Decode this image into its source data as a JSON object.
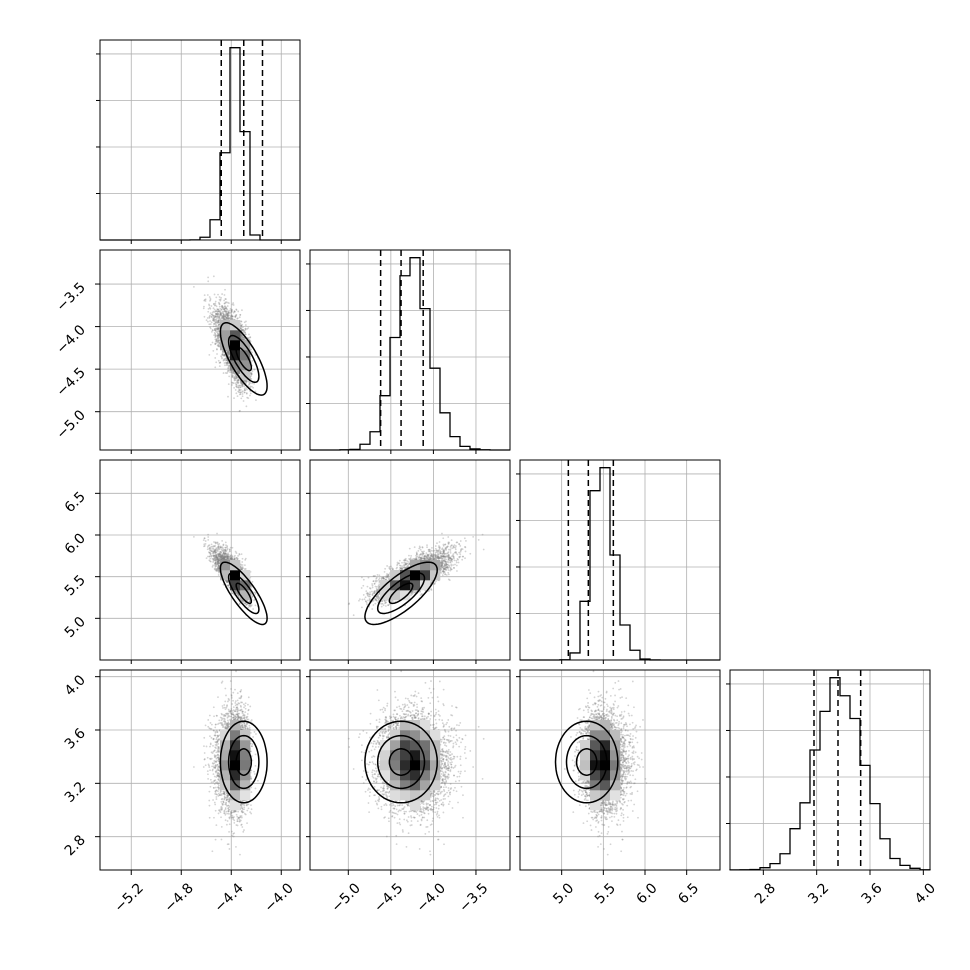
{
  "chart_data": {
    "type": "corner",
    "n_params": 4,
    "grid": true,
    "params": [
      {
        "range": [
          -5.45,
          -3.85
        ],
        "ticks": [
          -5.2,
          -4.8,
          -4.4,
          -4.0
        ],
        "tick_labels": [
          "−5.2",
          "−4.8",
          "−4.4",
          "−4.0"
        ],
        "mean": -4.3,
        "sd": 0.11,
        "skew": -2.5,
        "quantiles": [
          -4.48,
          -4.3,
          -4.15
        ]
      },
      {
        "range": [
          -5.45,
          -3.1
        ],
        "ticks": [
          -5.0,
          -4.5,
          -4.0,
          -3.5
        ],
        "tick_labels": [
          "−5.0",
          "−4.5",
          "−4.0",
          "−3.5"
        ],
        "mean": -4.38,
        "sd": 0.25,
        "skew": 0,
        "quantiles": [
          -4.62,
          -4.38,
          -4.12
        ]
      },
      {
        "range": [
          4.5,
          6.9
        ],
        "ticks": [
          5.0,
          5.5,
          6.0,
          6.5
        ],
        "tick_labels": [
          "5.0",
          "5.5",
          "6.0",
          "6.5"
        ],
        "mean": 5.3,
        "sd": 0.22,
        "skew": 2.5,
        "quantiles": [
          5.08,
          5.32,
          5.62
        ]
      },
      {
        "range": [
          2.55,
          4.05
        ],
        "ticks": [
          2.8,
          3.2,
          3.6,
          4.0
        ],
        "tick_labels": [
          "2.8",
          "3.2",
          "3.6",
          "4.0"
        ],
        "mean": 3.36,
        "sd": 0.18,
        "skew": 0,
        "quantiles": [
          3.18,
          3.36,
          3.53
        ]
      }
    ],
    "correlations": {
      "1-0": -0.75,
      "2-0": -0.8,
      "2-1": 0.75,
      "3-0": 0.0,
      "3-1": 0.0,
      "3-2": 0.0
    },
    "hist_bins": 20,
    "colors": {
      "line": "#000000",
      "grid": "#b0b0b0",
      "points": "#808080",
      "contour": "#000000"
    }
  }
}
